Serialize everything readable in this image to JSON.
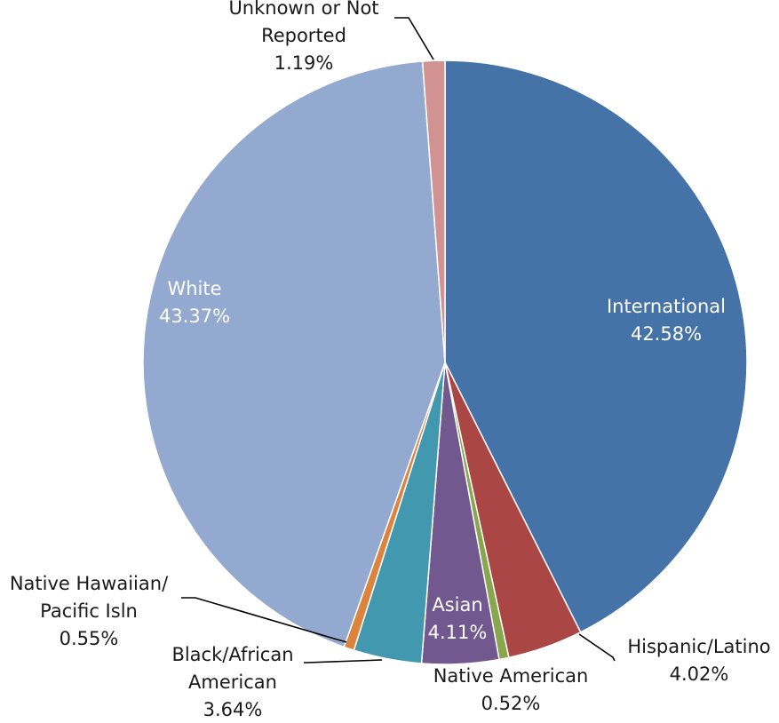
{
  "chart_data": {
    "type": "pie",
    "title": "",
    "start_angle_deg": 0,
    "direction": "clockwise",
    "slices": [
      {
        "key": "international",
        "lines": [
          "International",
          "42.58%"
        ],
        "value": 42.58,
        "color": "#4573A7"
      },
      {
        "key": "hispanic",
        "lines": [
          "Hispanic/Latino",
          "4.02%"
        ],
        "value": 4.02,
        "color": "#AA4644"
      },
      {
        "key": "native-american",
        "lines": [
          "Native American",
          "0.52%"
        ],
        "value": 0.52,
        "color": "#89A54E"
      },
      {
        "key": "asian",
        "lines": [
          "Asian",
          "4.11%"
        ],
        "value": 4.11,
        "color": "#71588F"
      },
      {
        "key": "black",
        "lines": [
          "Black/African",
          "American",
          "3.64%"
        ],
        "value": 3.64,
        "color": "#4198AF"
      },
      {
        "key": "native-hawaiian",
        "lines": [
          "Native Hawaiian/",
          "Pacific Isln",
          "0.55%"
        ],
        "value": 0.55,
        "color": "#DB843D"
      },
      {
        "key": "white",
        "lines": [
          "White",
          "43.37%"
        ],
        "value": 43.37,
        "color": "#93A9CF"
      },
      {
        "key": "unknown",
        "lines": [
          "Unknown or Not",
          "Reported",
          "1.19%"
        ],
        "value": 1.19,
        "color": "#D19392"
      }
    ]
  }
}
